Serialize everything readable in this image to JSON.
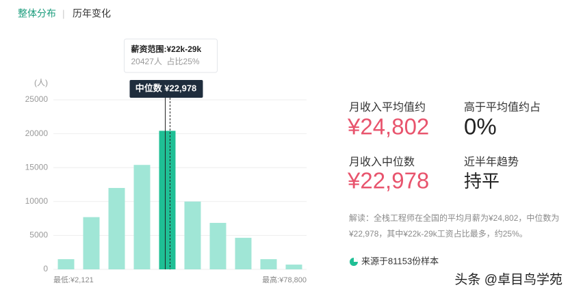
{
  "tabs": [
    "整体分布",
    "历年变化"
  ],
  "chart_data": {
    "type": "bar",
    "y_unit": "(人)",
    "categories": [
      null,
      null,
      null,
      null,
      null,
      null,
      null,
      null,
      null,
      null
    ],
    "values": [
      1500,
      7700,
      12000,
      15400,
      20427,
      10000,
      6850,
      4650,
      1500,
      700
    ],
    "colors": [
      "#a0e6d6",
      "#a0e6d6",
      "#a0e6d6",
      "#a0e6d6",
      "#1fbf95",
      "#a0e6d6",
      "#a0e6d6",
      "#a0e6d6",
      "#a0e6d6",
      "#a0e6d6"
    ],
    "ylim": [
      0,
      25000
    ],
    "yticks": [
      0,
      5000,
      10000,
      15000,
      20000,
      25000
    ],
    "grid": true,
    "min_label": "最低:¥2,121",
    "max_label": "最高:¥78,800",
    "tooltip": {
      "title": "薪资范围:¥22k-29k",
      "detail": "20427人  占比25%"
    },
    "median_label": "中位数 ¥22,978"
  },
  "stats": [
    {
      "label": "月收入平均值约",
      "value": "¥24,802"
    },
    {
      "label": "高于平均值约占",
      "value": "0%"
    },
    {
      "label": "月收入中位数",
      "value": "¥22,978"
    },
    {
      "label": "近半年趋势",
      "value": "持平"
    }
  ],
  "note": "解读：全栈工程师在全国的平均月薪为¥24,802，中位数为¥22,978，其中¥22k-29k工资占比最多，约25%。",
  "source": "来源于81153份样本",
  "watermark": "头条 @卓目鸟学苑"
}
